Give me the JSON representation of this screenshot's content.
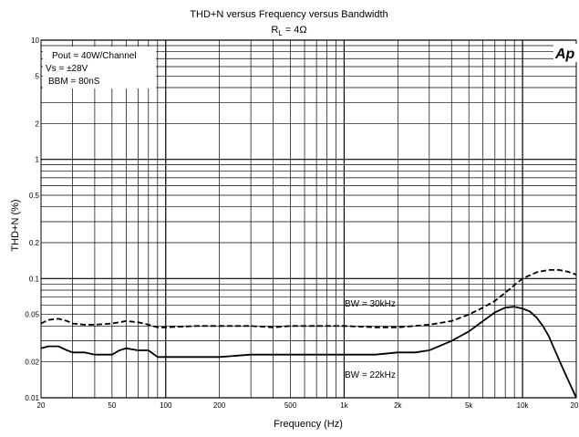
{
  "chart_data": {
    "type": "line",
    "title": "THD+N versus Frequency versus Bandwidth",
    "subtitle": {
      "r": "R",
      "sub": "L",
      "rest": " = 4Ω"
    },
    "xlabel": "Frequency (Hz)",
    "ylabel": "THD+N (%)",
    "x_scale": "log",
    "y_scale": "log",
    "xlim": [
      20,
      20000
    ],
    "ylim": [
      0.01,
      10
    ],
    "grid": true,
    "x_ticks": [
      {
        "value": 20,
        "label": "20"
      },
      {
        "value": 50,
        "label": "50"
      },
      {
        "value": 100,
        "label": "100"
      },
      {
        "value": 200,
        "label": "200"
      },
      {
        "value": 500,
        "label": "500"
      },
      {
        "value": 1000,
        "label": "1k"
      },
      {
        "value": 2000,
        "label": "2k"
      },
      {
        "value": 5000,
        "label": "5k"
      },
      {
        "value": 10000,
        "label": "10k"
      },
      {
        "value": 20000,
        "label": "20k"
      }
    ],
    "y_ticks": [
      {
        "value": 0.01,
        "label": "0.01"
      },
      {
        "value": 0.02,
        "label": "0.02"
      },
      {
        "value": 0.05,
        "label": "0.05"
      },
      {
        "value": 0.1,
        "label": "0.1"
      },
      {
        "value": 0.2,
        "label": "0.2"
      },
      {
        "value": 0.5,
        "label": "0.5"
      },
      {
        "value": 1,
        "label": "1"
      },
      {
        "value": 2,
        "label": "2"
      },
      {
        "value": 5,
        "label": "5"
      },
      {
        "value": 10,
        "label": "10"
      }
    ],
    "notes": [
      "Pout = 40W/Channel",
      "Vs = ±28V",
      "BBM = 80nS"
    ],
    "logo": "Ap",
    "series": [
      {
        "name": "BW = 30kHz",
        "style": "dashed",
        "color": "#000000",
        "x": [
          20,
          22,
          25,
          28,
          30,
          35,
          40,
          50,
          60,
          70,
          80,
          90,
          100,
          150,
          200,
          300,
          400,
          500,
          700,
          1000,
          1500,
          2000,
          3000,
          4000,
          5000,
          6000,
          7000,
          8000,
          9000,
          10000,
          12000,
          14000,
          16000,
          18000,
          20000
        ],
        "y": [
          0.042,
          0.045,
          0.046,
          0.044,
          0.042,
          0.041,
          0.041,
          0.042,
          0.044,
          0.043,
          0.041,
          0.039,
          0.039,
          0.04,
          0.04,
          0.04,
          0.039,
          0.04,
          0.04,
          0.04,
          0.039,
          0.039,
          0.041,
          0.044,
          0.05,
          0.057,
          0.065,
          0.076,
          0.088,
          0.1,
          0.113,
          0.118,
          0.118,
          0.114,
          0.108
        ]
      },
      {
        "name": "BW = 22kHz",
        "style": "solid",
        "color": "#000000",
        "x": [
          20,
          22,
          25,
          28,
          30,
          35,
          40,
          50,
          55,
          60,
          70,
          80,
          90,
          100,
          150,
          200,
          300,
          400,
          500,
          700,
          1000,
          1500,
          2000,
          2500,
          3000,
          4000,
          5000,
          6000,
          7000,
          8000,
          9000,
          10000,
          11000,
          12000,
          13000,
          14000,
          15000,
          17000,
          20000
        ],
        "y": [
          0.026,
          0.027,
          0.027,
          0.025,
          0.024,
          0.024,
          0.023,
          0.023,
          0.025,
          0.026,
          0.025,
          0.025,
          0.022,
          0.022,
          0.022,
          0.022,
          0.023,
          0.023,
          0.023,
          0.023,
          0.023,
          0.023,
          0.024,
          0.024,
          0.025,
          0.03,
          0.036,
          0.044,
          0.052,
          0.057,
          0.058,
          0.056,
          0.053,
          0.047,
          0.04,
          0.033,
          0.026,
          0.017,
          0.01
        ]
      }
    ],
    "annotations": [
      {
        "text": "BW = 30kHz",
        "series": 0
      },
      {
        "text": "BW = 22kHz",
        "series": 1
      }
    ]
  }
}
